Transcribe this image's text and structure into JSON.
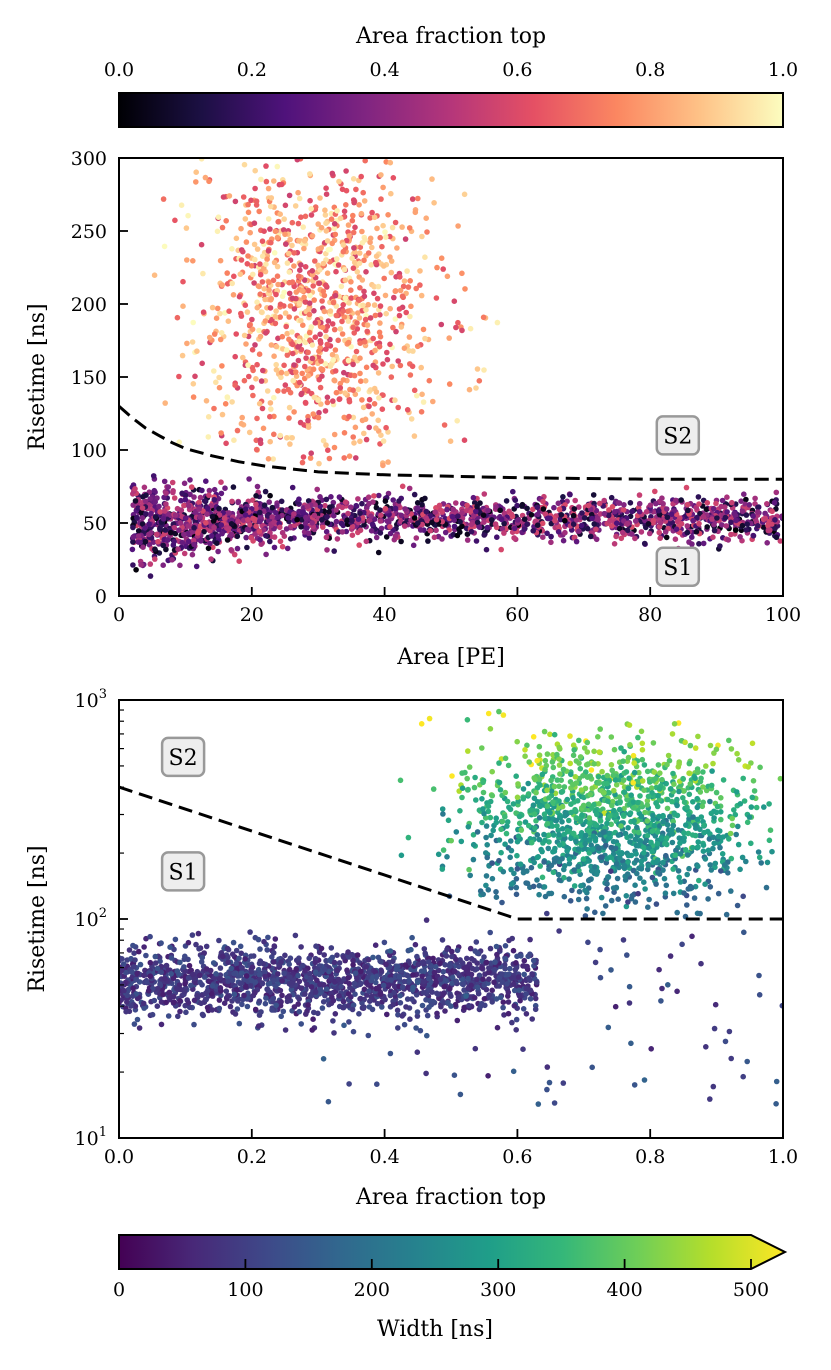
{
  "colors": {
    "magma": [
      "#000004",
      "#1c1044",
      "#4f127b",
      "#812581",
      "#b5367a",
      "#e55064",
      "#fb8761",
      "#fec287",
      "#fcfdbf"
    ],
    "viridis": [
      "#440154",
      "#482878",
      "#3e4989",
      "#31688e",
      "#26828e",
      "#1f9e89",
      "#35b779",
      "#6ece58",
      "#b5de2b",
      "#fde725"
    ],
    "threshold_line": "#000000",
    "label_box_fill": "#eeeeee",
    "label_box_edge": "#999999"
  },
  "top_colorbar": {
    "label": "Area fraction top",
    "ticks": [
      "0.0",
      "0.2",
      "0.4",
      "0.6",
      "0.8",
      "1.0"
    ],
    "range": [
      0,
      1
    ],
    "colormap": "magma"
  },
  "bottom_colorbar": {
    "label": "Width [ns]",
    "ticks": [
      "0",
      "100",
      "200",
      "300",
      "400",
      "500"
    ],
    "range": [
      0,
      500
    ],
    "extend": "max",
    "colormap": "viridis"
  },
  "chart_data": [
    {
      "type": "scatter",
      "title": "",
      "xlabel": "Area [PE]",
      "ylabel": "Risetime [ns]",
      "xlim": [
        0,
        100
      ],
      "ylim": [
        0,
        300
      ],
      "xscale": "linear",
      "yscale": "linear",
      "xticks": [
        "0",
        "20",
        "40",
        "60",
        "80",
        "100"
      ],
      "yticks": [
        "0",
        "50",
        "100",
        "150",
        "200",
        "250",
        "300"
      ],
      "color_by": "Area fraction top",
      "annotations": [
        {
          "text": "S2",
          "x": 84,
          "y": 110
        },
        {
          "text": "S1",
          "x": 84,
          "y": 20
        }
      ],
      "threshold": {
        "style": "dashed",
        "x": [
          0,
          2,
          4,
          6,
          8,
          10,
          14,
          18,
          22,
          26,
          30,
          35,
          40,
          50,
          60,
          70,
          80,
          90,
          100
        ],
        "y": [
          130,
          122,
          115,
          110,
          105,
          101,
          96,
          92,
          89,
          87,
          85,
          84,
          83,
          82,
          81,
          80.5,
          80,
          80,
          80
        ]
      },
      "series": [
        {
          "name": "S2",
          "points": {
            "x_range": [
              5,
              62
            ],
            "x_center": 30,
            "x_spread": 9,
            "y_range": [
              85,
              300
            ],
            "y_center": 195,
            "y_spread": 55,
            "count": 1100,
            "color_value_range": [
              0.55,
              1.0
            ]
          }
        },
        {
          "name": "S1",
          "points": {
            "x_range": [
              2,
              100
            ],
            "y_center": 53,
            "y_spread": 7,
            "count": 2000,
            "color_value_range": [
              0.0,
              0.6
            ]
          }
        }
      ]
    },
    {
      "type": "scatter",
      "title": "",
      "xlabel": "Area fraction top",
      "ylabel": "Risetime [ns]",
      "xlim": [
        0,
        1
      ],
      "ylim": [
        10,
        1000
      ],
      "xscale": "linear",
      "yscale": "log",
      "xticks": [
        "0.0",
        "0.2",
        "0.4",
        "0.6",
        "0.8",
        "1.0"
      ],
      "yticks": [
        {
          "value": 10,
          "base": "10",
          "exp": "1"
        },
        {
          "value": 100,
          "base": "10",
          "exp": "2"
        },
        {
          "value": 1000,
          "base": "10",
          "exp": "3"
        }
      ],
      "color_by": "Width [ns]",
      "annotations": [
        {
          "text": "S2",
          "x": 0.095,
          "y": 550
        },
        {
          "text": "S1",
          "x": 0.095,
          "y": 165
        }
      ],
      "threshold": {
        "style": "dashed",
        "x": [
          0,
          0.6,
          0.6,
          1.0
        ],
        "y": [
          400,
          100,
          100,
          100
        ]
      },
      "series": [
        {
          "name": "S1",
          "points": {
            "x_range": [
              0.0,
              0.63
            ],
            "y_center": 52,
            "y_spread_log10": 0.08,
            "count": 1600,
            "color_value_range": [
              40,
              130
            ]
          }
        },
        {
          "name": "S2",
          "points": {
            "x_range": [
              0.42,
              1.0
            ],
            "x_center": 0.74,
            "y_range": [
              90,
              950
            ],
            "y_center": 280,
            "count": 1400,
            "color_value_range": [
              150,
              520
            ]
          }
        },
        {
          "name": "outliers",
          "points": {
            "x_range": [
              0.0,
              1.0
            ],
            "y_range": [
              13,
              100
            ],
            "count": 90,
            "color_value_range": [
              40,
              160
            ]
          }
        }
      ]
    }
  ]
}
